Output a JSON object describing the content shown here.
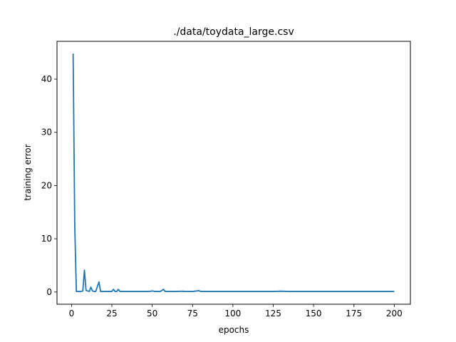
{
  "chart_data": {
    "type": "line",
    "title": "./data/toydata_large.csv",
    "xlabel": "epochs",
    "ylabel": "training error",
    "xlim": [
      -9,
      210
    ],
    "ylim": [
      -2.3,
      47.1
    ],
    "xticks": [
      0,
      25,
      50,
      75,
      100,
      125,
      150,
      175,
      200
    ],
    "yticks": [
      0,
      10,
      20,
      30,
      40
    ],
    "grid": false,
    "line_color": "#1f77b4",
    "series": [
      {
        "values": [
          [
            1,
            44.8
          ],
          [
            2,
            12.5
          ],
          [
            3,
            0.1
          ],
          [
            4,
            0.1
          ],
          [
            5,
            0.1
          ],
          [
            6,
            0.1
          ],
          [
            7,
            0.2
          ],
          [
            8,
            4.1
          ],
          [
            9,
            0.3
          ],
          [
            10,
            0.2
          ],
          [
            11,
            0.1
          ],
          [
            12,
            0.9
          ],
          [
            13,
            0.2
          ],
          [
            14,
            0.1
          ],
          [
            15,
            0.1
          ],
          [
            16,
            1.0
          ],
          [
            17,
            1.9
          ],
          [
            18,
            0.1
          ],
          [
            19,
            0.1
          ],
          [
            20,
            0.1
          ],
          [
            21,
            0.1
          ],
          [
            22,
            0.1
          ],
          [
            23,
            0.1
          ],
          [
            24,
            0.1
          ],
          [
            25,
            0.1
          ],
          [
            26,
            0.5
          ],
          [
            27,
            0.1
          ],
          [
            28,
            0.1
          ],
          [
            29,
            0.5
          ],
          [
            30,
            0.1
          ],
          [
            31,
            0.1
          ],
          [
            32,
            0.1
          ],
          [
            35,
            0.1
          ],
          [
            40,
            0.1
          ],
          [
            45,
            0.1
          ],
          [
            48,
            0.1
          ],
          [
            50,
            0.2
          ],
          [
            52,
            0.1
          ],
          [
            55,
            0.1
          ],
          [
            57,
            0.5
          ],
          [
            58,
            0.1
          ],
          [
            60,
            0.1
          ],
          [
            65,
            0.1
          ],
          [
            69,
            0.15
          ],
          [
            70,
            0.1
          ],
          [
            75,
            0.1
          ],
          [
            79,
            0.25
          ],
          [
            80,
            0.1
          ],
          [
            85,
            0.1
          ],
          [
            90,
            0.1
          ],
          [
            95,
            0.1
          ],
          [
            100,
            0.1
          ],
          [
            105,
            0.1
          ],
          [
            110,
            0.1
          ],
          [
            115,
            0.1
          ],
          [
            120,
            0.1
          ],
          [
            125,
            0.1
          ],
          [
            130,
            0.15
          ],
          [
            135,
            0.1
          ],
          [
            140,
            0.1
          ],
          [
            145,
            0.1
          ],
          [
            150,
            0.1
          ],
          [
            155,
            0.1
          ],
          [
            160,
            0.1
          ],
          [
            165,
            0.1
          ],
          [
            170,
            0.1
          ],
          [
            175,
            0.1
          ],
          [
            180,
            0.1
          ],
          [
            185,
            0.1
          ],
          [
            190,
            0.1
          ],
          [
            195,
            0.1
          ],
          [
            200,
            0.1
          ]
        ]
      }
    ]
  }
}
